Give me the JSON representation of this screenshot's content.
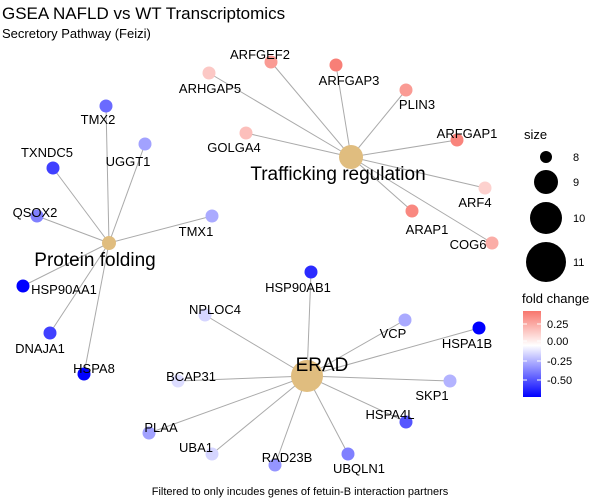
{
  "title": "GSEA NAFLD vs WT Transcriptomics",
  "subtitle": "Secretory Pathway (Feizi)",
  "caption": "Filtered to only incudes genes of fetuin-B interaction partners",
  "colors": {
    "edge": "#aaaaaa",
    "category_node": "#e0bd7f",
    "fc_high": "#f8766d",
    "fc_mid": "#ffffff",
    "fc_low": "#0000ff"
  },
  "legend": {
    "size_title": "size",
    "size_entries": [
      "8",
      "9",
      "10",
      "11"
    ],
    "color_title": "fold change",
    "color_ticks": [
      "0.25",
      "0.00",
      "-0.25",
      "-0.50"
    ]
  },
  "categories": [
    {
      "id": "trafficking",
      "label": "Trafficking regulation",
      "size": 11
    },
    {
      "id": "protein_folding",
      "label": "Protein folding",
      "size": 8
    },
    {
      "id": "erad",
      "label": "ERAD",
      "size": 11
    }
  ],
  "genes": [
    {
      "label": "ARFGEF2",
      "category": "trafficking",
      "fold_change": 0.22
    },
    {
      "label": "ARHGAP5",
      "category": "trafficking",
      "fold_change": 0.12
    },
    {
      "label": "ARFGAP3",
      "category": "trafficking",
      "fold_change": 0.28
    },
    {
      "label": "PLIN3",
      "category": "trafficking",
      "fold_change": 0.22
    },
    {
      "label": "ARFGAP1",
      "category": "trafficking",
      "fold_change": 0.27
    },
    {
      "label": "GOLGA4",
      "category": "trafficking",
      "fold_change": 0.14
    },
    {
      "label": "ARF4",
      "category": "trafficking",
      "fold_change": 0.1
    },
    {
      "label": "ARAP1",
      "category": "trafficking",
      "fold_change": 0.26
    },
    {
      "label": "COG6",
      "category": "trafficking",
      "fold_change": 0.18
    },
    {
      "label": "TMX2",
      "category": "protein_folding",
      "fold_change": -0.35
    },
    {
      "label": "TXNDC5",
      "category": "protein_folding",
      "fold_change": -0.45
    },
    {
      "label": "UGGT1",
      "category": "protein_folding",
      "fold_change": -0.22
    },
    {
      "label": "QSOX2",
      "category": "protein_folding",
      "fold_change": -0.3
    },
    {
      "label": "TMX1",
      "category": "protein_folding",
      "fold_change": -0.2
    },
    {
      "label": "HSP90AA1",
      "category": "protein_folding",
      "fold_change": -0.6
    },
    {
      "label": "DNAJA1",
      "category": "protein_folding",
      "fold_change": -0.45
    },
    {
      "label": "HSPA8",
      "category": "protein_folding",
      "fold_change": -0.62
    },
    {
      "label": "HSP90AB1",
      "category": "erad",
      "fold_change": -0.5
    },
    {
      "label": "NPLOC4",
      "category": "erad",
      "fold_change": -0.1
    },
    {
      "label": "VCP",
      "category": "erad",
      "fold_change": -0.2
    },
    {
      "label": "HSPA1B",
      "category": "erad",
      "fold_change": -0.6
    },
    {
      "label": "BCAP31",
      "category": "erad",
      "fold_change": -0.08
    },
    {
      "label": "SKP1",
      "category": "erad",
      "fold_change": -0.18
    },
    {
      "label": "HSPA4L",
      "category": "erad",
      "fold_change": -0.4
    },
    {
      "label": "PLAA",
      "category": "erad",
      "fold_change": -0.22
    },
    {
      "label": "UBA1",
      "category": "erad",
      "fold_change": -0.1
    },
    {
      "label": "RAD23B",
      "category": "erad",
      "fold_change": -0.25
    },
    {
      "label": "UBQLN1",
      "category": "erad",
      "fold_change": -0.3
    }
  ]
}
